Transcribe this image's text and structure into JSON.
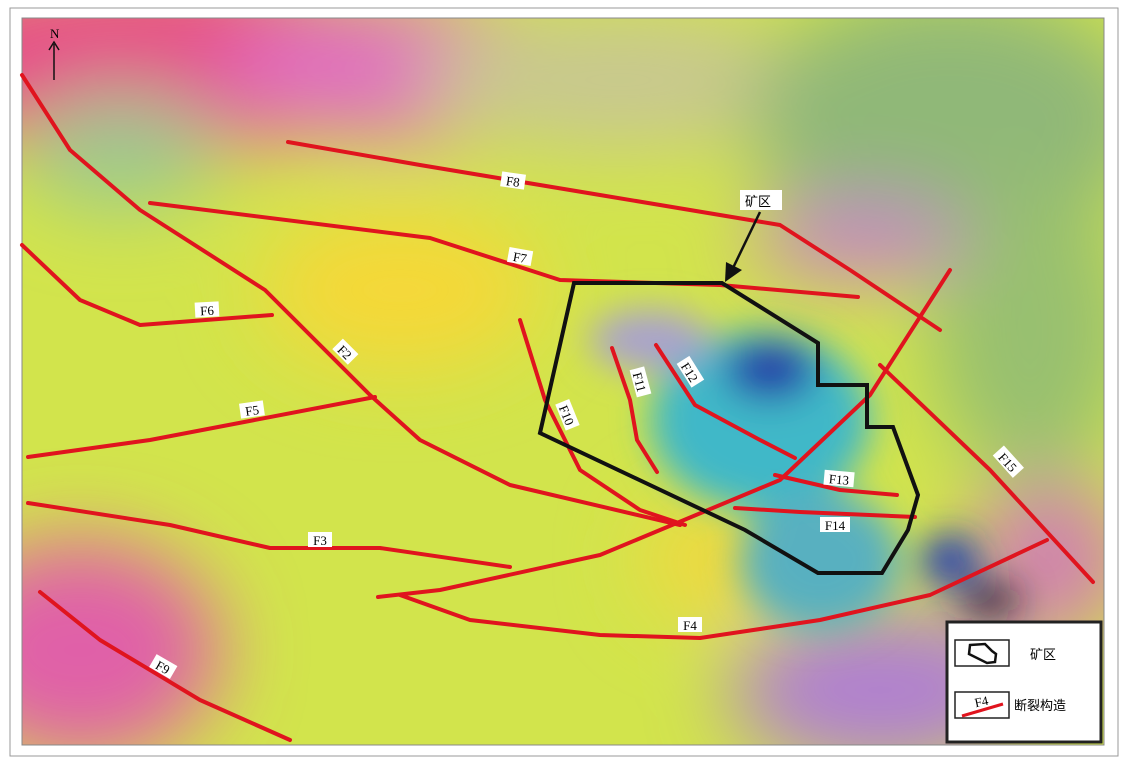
{
  "map": {
    "north_label": "N",
    "mine_area_label": "矿区",
    "faults": [
      "F2",
      "F3",
      "F4",
      "F5",
      "F6",
      "F7",
      "F8",
      "F9",
      "F10",
      "F11",
      "F12",
      "F13",
      "F14",
      "F15"
    ],
    "colors": {
      "fault": "#e0141e",
      "mine_boundary": "#000000"
    }
  },
  "legend": {
    "items": [
      {
        "icon": "mine-boundary-symbol",
        "label": "矿区"
      },
      {
        "icon": "fault-line-symbol",
        "sample_label": "F4",
        "label": "断裂构造"
      }
    ]
  }
}
